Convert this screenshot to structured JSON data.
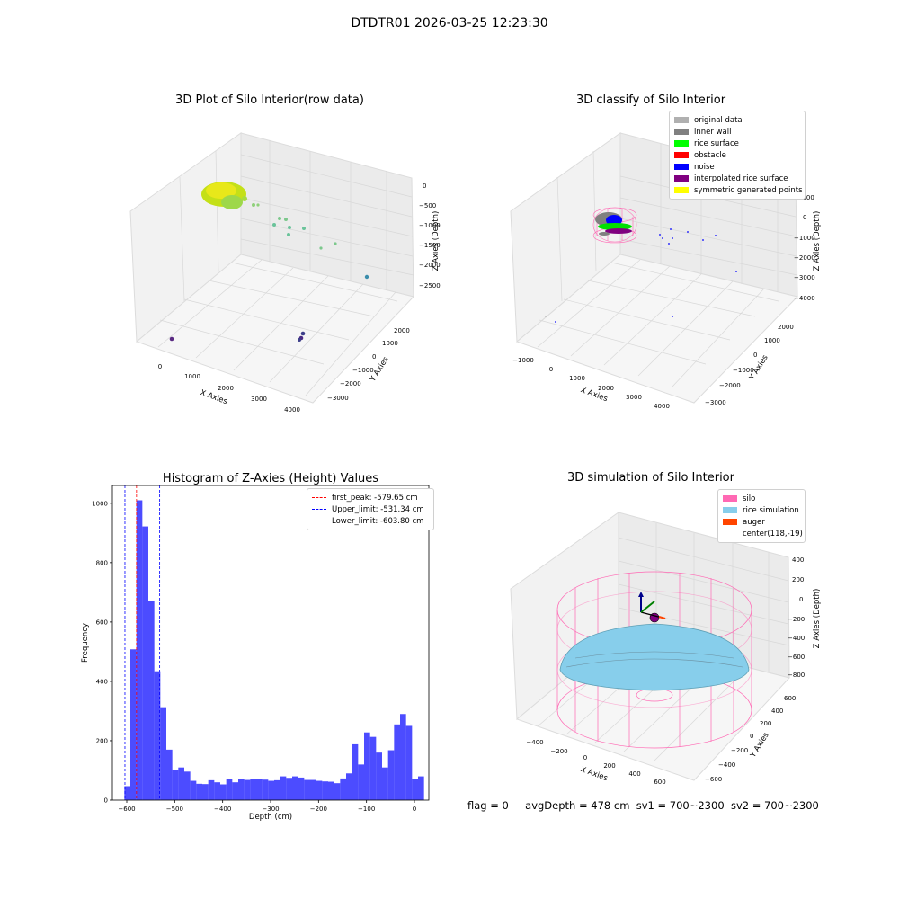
{
  "suptitle": "DTDTR01 2026-03-25 12:23:30",
  "panels": {
    "raw": {
      "title": "3D Plot of Silo Interior(row data)",
      "xlabel": "X Axies",
      "ylabel": "Y Axies",
      "zlabel": "Z Axies (Depth)",
      "xticks": [
        "0",
        "1000",
        "2000",
        "3000",
        "4000"
      ],
      "yticks": [
        "2000",
        "1000",
        "0",
        "−1000",
        "−2000",
        "−3000"
      ],
      "zticks": [
        "0",
        "−500",
        "−1000",
        "−1500",
        "−2000",
        "−2500"
      ]
    },
    "classify": {
      "title": "3D classify of Silo Interior",
      "xlabel": "X Axies",
      "ylabel": "Y Axies",
      "zlabel": "Z Axies (Depth)",
      "xticks": [
        "−1000",
        "0",
        "1000",
        "2000",
        "3000",
        "4000"
      ],
      "yticks": [
        "2000",
        "1000",
        "0",
        "−1000",
        "−2000",
        "−3000"
      ],
      "zticks": [
        "1000",
        "0",
        "−1000",
        "−2000",
        "−3000",
        "−4000"
      ],
      "legend": [
        {
          "label": "original data",
          "color": "#b0b0b0"
        },
        {
          "label": "inner wall",
          "color": "#808080"
        },
        {
          "label": "rice surface",
          "color": "#00ff00"
        },
        {
          "label": "obstacle",
          "color": "#ff0000"
        },
        {
          "label": "noise",
          "color": "#0000ff"
        },
        {
          "label": "interpolated rice surface",
          "color": "#800080"
        },
        {
          "label": "symmetric generated points",
          "color": "#ffff00"
        }
      ]
    },
    "simulation": {
      "title": "3D simulation of Silo Interior",
      "xlabel": "X Axies",
      "ylabel": "Y Axies",
      "zlabel": "Z Axies (Depth)",
      "xticks": [
        "−400",
        "−200",
        "0",
        "200",
        "400",
        "600"
      ],
      "yticks": [
        "600",
        "400",
        "200",
        "0",
        "−200",
        "−400",
        "−600"
      ],
      "zticks": [
        "400",
        "200",
        "0",
        "−200",
        "−400",
        "−600",
        "−800"
      ],
      "legend": [
        {
          "label": "silo",
          "color": "#ff69b4"
        },
        {
          "label": "rice simulation",
          "color": "#87ceeb"
        },
        {
          "label": "auger",
          "color": "#ff4500"
        },
        {
          "label": "center(118,-19)",
          "color": ""
        }
      ]
    }
  },
  "footer": {
    "flag": "flag = 0",
    "avg": "avgDepth = 478 cm",
    "sv1": "sv1 = 700~2300",
    "sv2": "sv2 = 700~2300"
  },
  "chart_data": [
    {
      "type": "histogram",
      "title": "Histogram of Z-Axies (Height) Values",
      "xlabel": "Depth (cm)",
      "ylabel": "Frequency",
      "xlim": [
        -630,
        30
      ],
      "ylim": [
        0,
        1060
      ],
      "xticks": [
        -600,
        -500,
        -400,
        -300,
        -200,
        -100,
        0
      ],
      "yticks": [
        0,
        200,
        400,
        600,
        800,
        1000
      ],
      "bin_width": 12.5,
      "bin_start": -605,
      "values": [
        47,
        508,
        1010,
        922,
        672,
        434,
        313,
        170,
        103,
        110,
        96,
        65,
        55,
        54,
        67,
        60,
        53,
        70,
        60,
        70,
        68,
        70,
        71,
        69,
        65,
        67,
        80,
        75,
        80,
        76,
        68,
        68,
        65,
        63,
        62,
        57,
        73,
        90,
        188,
        120,
        228,
        213,
        160,
        110,
        168,
        255,
        290,
        250,
        72,
        80
      ],
      "color": "#0000ff",
      "vlines": [
        {
          "name": "first_peak",
          "label": "first_peak: -579.65 cm",
          "x": -579.65,
          "color": "#ff0000"
        },
        {
          "name": "upper-limit",
          "label": "Upper_limit: -531.34 cm",
          "x": -531.34,
          "color": "#0000ff"
        },
        {
          "name": "lower-limit",
          "label": "Lower_limit: -603.80 cm",
          "x": -603.8,
          "color": "#0000ff"
        }
      ],
      "legend_position": "upper right"
    }
  ]
}
